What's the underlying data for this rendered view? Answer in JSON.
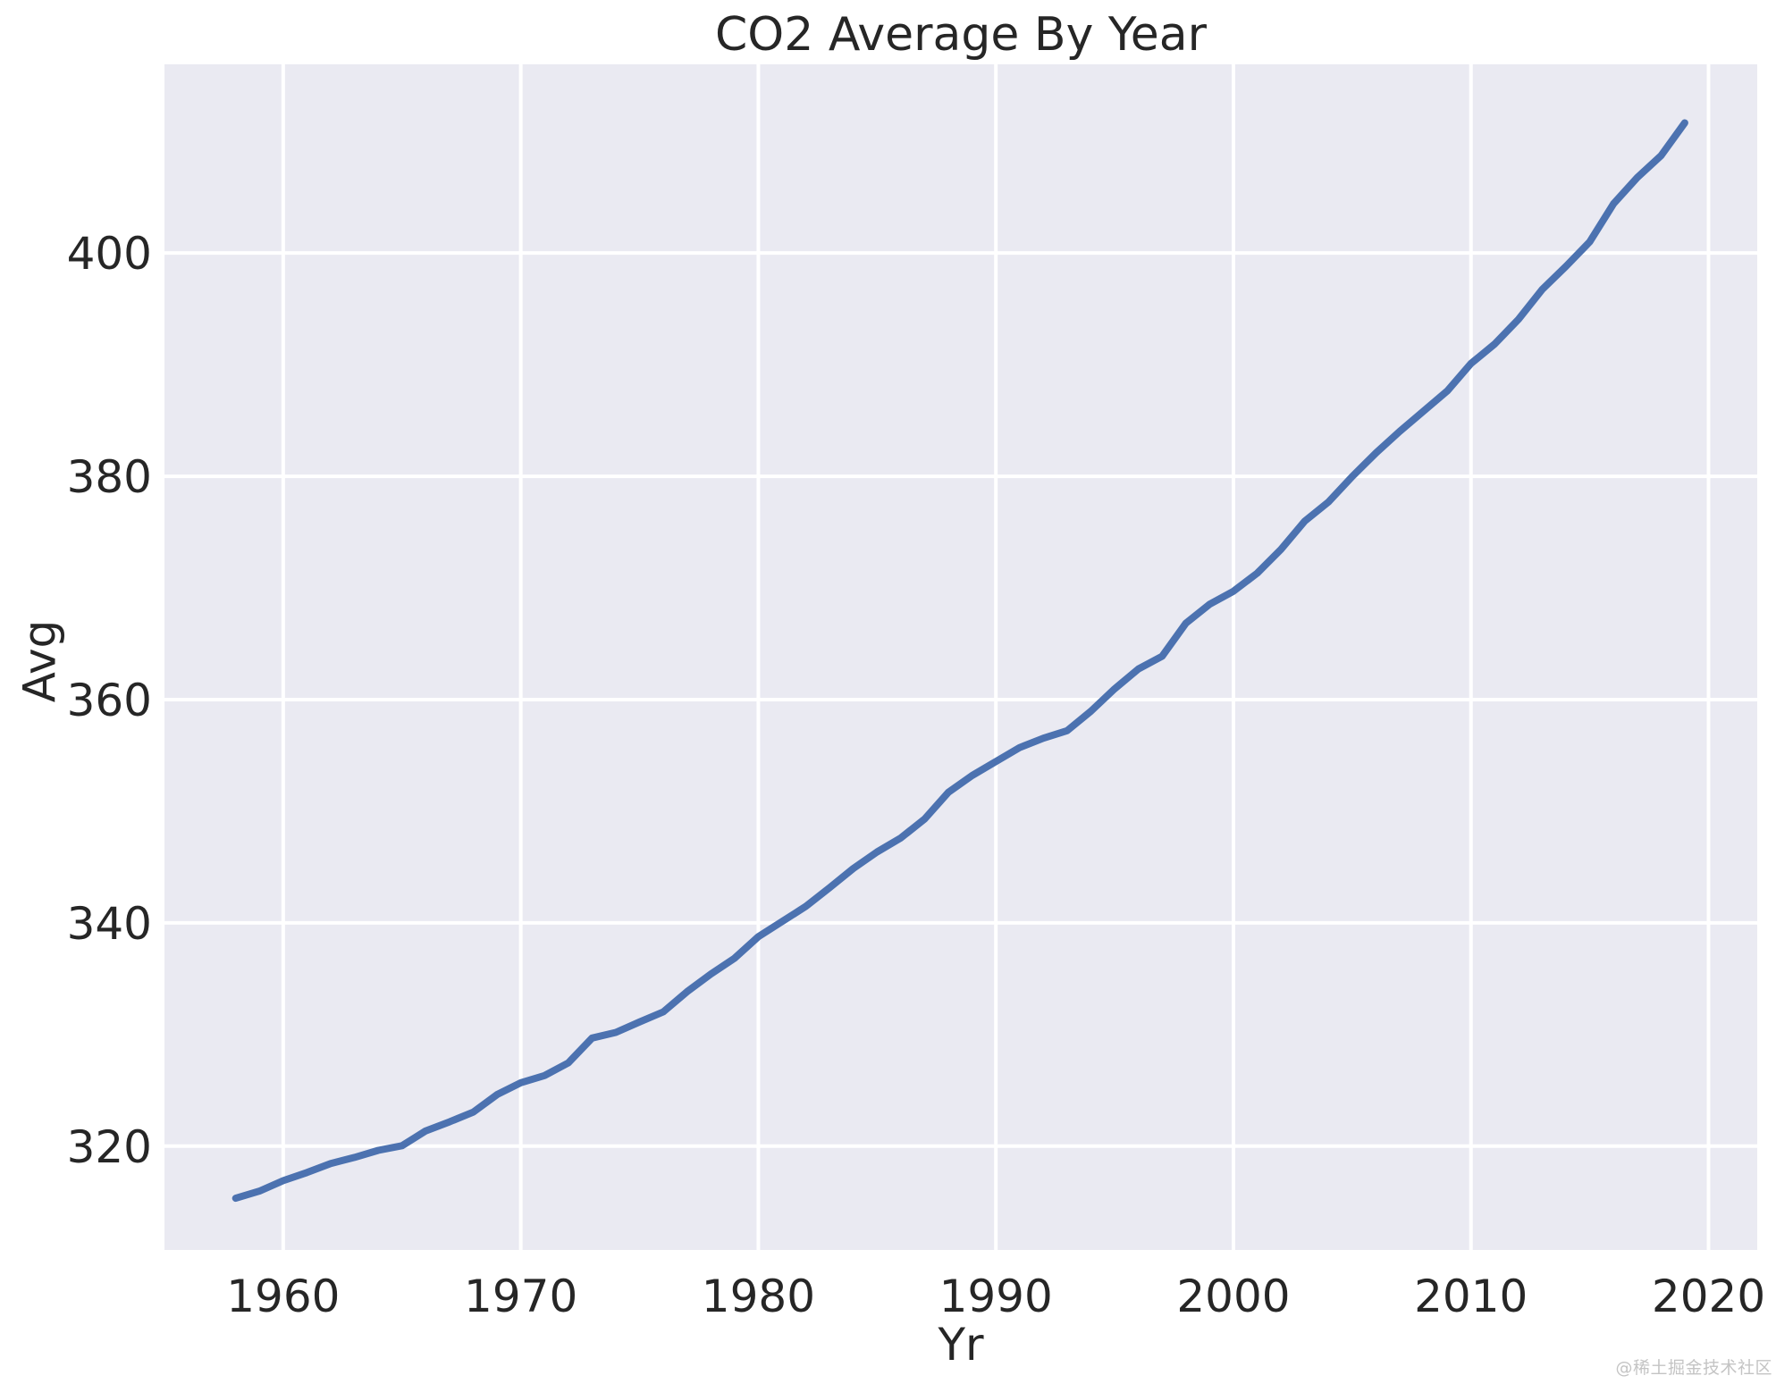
{
  "watermark": "@稀土掘金技术社区",
  "chart_data": {
    "type": "line",
    "title": "CO2 Average By Year",
    "xlabel": "Yr",
    "ylabel": "Avg",
    "grid": true,
    "legend": "none",
    "xlim": [
      1955.0,
      2022.05
    ],
    "ylim": [
      310.7,
      416.9
    ],
    "xticks": [
      1960,
      1970,
      1980,
      1990,
      2000,
      2010,
      2020
    ],
    "yticks": [
      320,
      340,
      360,
      380,
      400
    ],
    "colors": {
      "line": "#4c72b0",
      "plot_bg": "#eaeaf2",
      "grid": "#ffffff",
      "text": "#262626",
      "watermark": "#c4c4c4"
    },
    "series": [
      {
        "name": "Avg",
        "x": [
          1958,
          1959,
          1960,
          1961,
          1962,
          1963,
          1964,
          1965,
          1966,
          1967,
          1968,
          1969,
          1970,
          1971,
          1972,
          1973,
          1974,
          1975,
          1976,
          1977,
          1978,
          1979,
          1980,
          1981,
          1982,
          1983,
          1984,
          1985,
          1986,
          1987,
          1988,
          1989,
          1990,
          1991,
          1992,
          1993,
          1994,
          1995,
          1996,
          1997,
          1998,
          1999,
          2000,
          2001,
          2002,
          2003,
          2004,
          2005,
          2006,
          2007,
          2008,
          2009,
          2010,
          2011,
          2012,
          2013,
          2014,
          2015,
          2016,
          2017,
          2018,
          2019
        ],
        "values": [
          315.33,
          315.97,
          316.91,
          317.64,
          318.45,
          318.99,
          319.62,
          320.04,
          321.37,
          322.18,
          323.05,
          324.62,
          325.68,
          326.32,
          327.46,
          329.68,
          330.19,
          331.12,
          332.03,
          333.84,
          335.41,
          336.84,
          338.76,
          340.12,
          341.48,
          343.15,
          344.87,
          346.35,
          347.61,
          349.31,
          351.69,
          353.2,
          354.45,
          355.7,
          356.54,
          357.21,
          358.96,
          360.97,
          362.74,
          363.88,
          366.84,
          368.54,
          369.71,
          371.32,
          373.45,
          375.98,
          377.7,
          379.98,
          382.09,
          384.02,
          385.83,
          387.64,
          390.1,
          391.85,
          394.06,
          396.74,
          398.81,
          401.01,
          404.41,
          406.76,
          408.72,
          411.66
        ]
      }
    ]
  }
}
